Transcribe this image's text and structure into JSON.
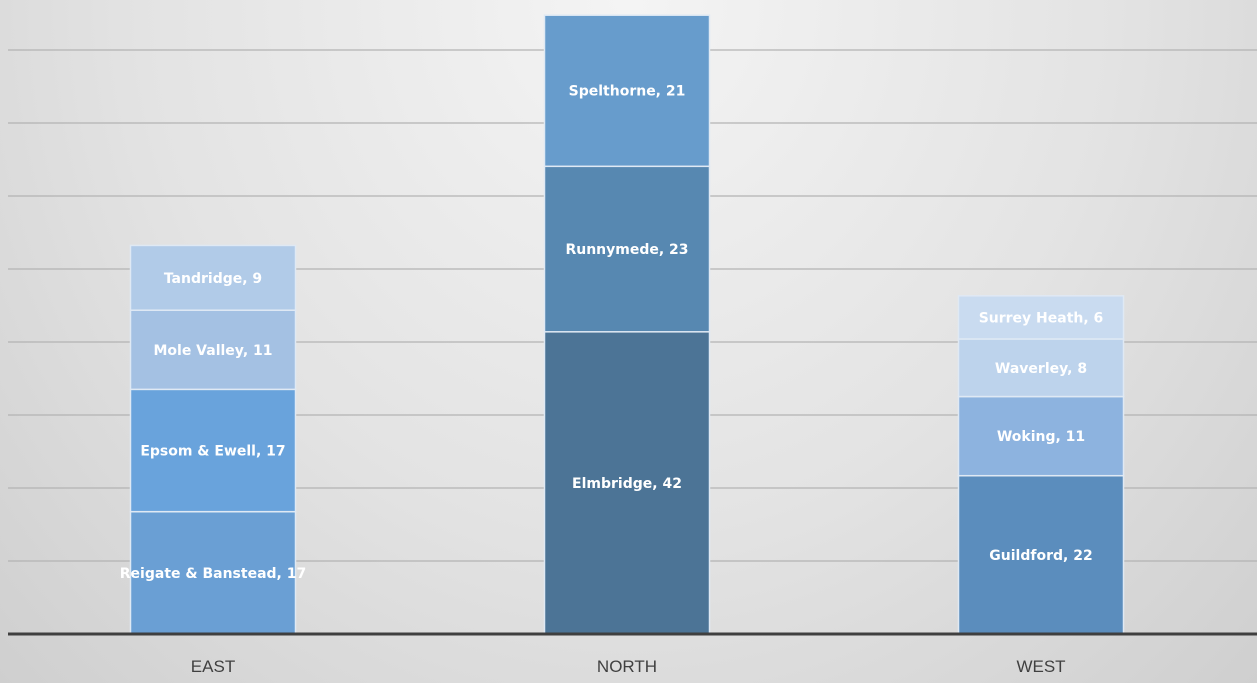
{
  "chart_data": {
    "type": "bar",
    "stacked": true,
    "title": "",
    "xlabel": "",
    "ylabel": "",
    "ylim": [
      0,
      87
    ],
    "grid": true,
    "legend": "none",
    "categories": [
      "EAST",
      "NORTH",
      "WEST"
    ],
    "stacks": [
      {
        "category": "EAST",
        "segments": [
          {
            "label": "Reigate & Banstead, 17",
            "value": 17,
            "color": "#6a9fd4"
          },
          {
            "label": "Epsom & Ewell, 17",
            "value": 17,
            "color": "#69a3dc"
          },
          {
            "label": "Mole Valley, 11",
            "value": 11,
            "color": "#a4c1e3"
          },
          {
            "label": "Tandridge, 9",
            "value": 9,
            "color": "#b1cbe8"
          }
        ]
      },
      {
        "category": "NORTH",
        "segments": [
          {
            "label": "Elmbridge, 42",
            "value": 42,
            "color": "#4c7496"
          },
          {
            "label": "Runnymede, 23",
            "value": 23,
            "color": "#5788b1"
          },
          {
            "label": "Spelthorne, 21",
            "value": 21,
            "color": "#679ccc"
          }
        ]
      },
      {
        "category": "WEST",
        "segments": [
          {
            "label": "Guildford, 22",
            "value": 22,
            "color": "#5b8dbd"
          },
          {
            "label": "Woking, 11",
            "value": 11,
            "color": "#8db3df"
          },
          {
            "label": "Waverley, 8",
            "value": 8,
            "color": "#bdd3ec"
          },
          {
            "label": "Surrey Heath, 6",
            "value": 6,
            "color": "#c9dbf0"
          }
        ]
      }
    ]
  }
}
